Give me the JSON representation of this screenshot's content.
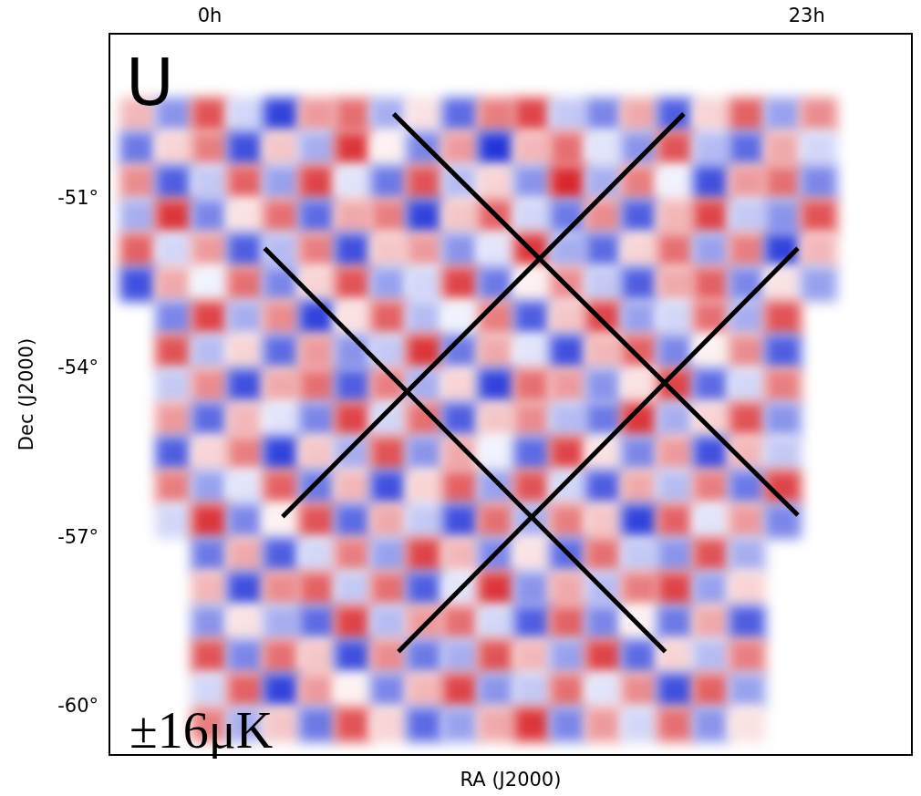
{
  "chart_data": {
    "type": "heatmap",
    "title": "U",
    "annotations": [
      "±16μK"
    ],
    "x_label": "RA (J2000)",
    "y_label": "Dec (J2000)",
    "xlim": [
      24.168,
      22.824
    ],
    "ylim": [
      -60.84,
      -48.06
    ],
    "xticks": [
      {
        "value": 24,
        "label": "0h"
      },
      {
        "value": 23,
        "label": "23h"
      }
    ],
    "yticks": [
      {
        "value": -51,
        "label": "-51°"
      },
      {
        "value": -54,
        "label": "-54°"
      },
      {
        "value": -57,
        "label": "-57°"
      },
      {
        "value": -60,
        "label": "-60°"
      }
    ],
    "grid": false,
    "clim": [
      -16,
      16
    ],
    "x": [
      24.12,
      24.06,
      24.0,
      23.94,
      23.88,
      23.82,
      23.76,
      23.7,
      23.64,
      23.58,
      23.52,
      23.46,
      23.4,
      23.34,
      23.28,
      23.22,
      23.16,
      23.1,
      23.04,
      22.98
    ],
    "y": [
      -49.5,
      -50.1,
      -50.7,
      -51.3,
      -51.9,
      -52.5,
      -53.1,
      -53.7,
      -54.3,
      -54.9,
      -55.5,
      -56.1,
      -56.7,
      -57.3,
      -57.9,
      -58.5,
      -59.1,
      -59.7,
      -60.3
    ],
    "cells": [
      [
        5,
        -8,
        12,
        -3,
        -14,
        7,
        10,
        -6,
        2,
        -11,
        9,
        13,
        -4,
        -9,
        6,
        -12,
        3,
        11,
        -7,
        8
      ],
      [
        -10,
        3,
        9,
        -13,
        4,
        -6,
        14,
        1,
        -9,
        7,
        -15,
        5,
        10,
        -2,
        -8,
        12,
        -5,
        -11,
        6,
        -3
      ],
      [
        8,
        -12,
        -4,
        11,
        -7,
        13,
        -2,
        -10,
        12,
        -5,
        3,
        -8,
        15,
        -6,
        9,
        -1,
        -13,
        7,
        10,
        -9
      ],
      [
        -6,
        14,
        -9,
        2,
        10,
        -11,
        6,
        9,
        -14,
        4,
        11,
        -3,
        -10,
        8,
        -12,
        5,
        13,
        -4,
        -8,
        12
      ],
      [
        11,
        -3,
        7,
        -12,
        -5,
        9,
        -13,
        4,
        7,
        -8,
        -2,
        14,
        -6,
        -11,
        3,
        10,
        -7,
        9,
        -14,
        5
      ],
      [
        -13,
        6,
        -1,
        10,
        -9,
        3,
        12,
        -7,
        -3,
        13,
        -10,
        1,
        8,
        -4,
        -12,
        6,
        11,
        -9,
        2,
        -7
      ],
      [
        null,
        -9,
        13,
        -6,
        8,
        -14,
        2,
        11,
        -5,
        -1,
        9,
        -12,
        4,
        13,
        -7,
        -3,
        10,
        -6,
        12,
        null
      ],
      [
        null,
        12,
        -5,
        3,
        -11,
        7,
        -8,
        -4,
        14,
        -10,
        6,
        -2,
        -13,
        5,
        11,
        -9,
        1,
        8,
        -12,
        null
      ],
      [
        null,
        -4,
        8,
        -13,
        6,
        10,
        -12,
        9,
        -6,
        3,
        -14,
        10,
        7,
        -8,
        2,
        13,
        -11,
        -3,
        9,
        null
      ],
      [
        null,
        7,
        -11,
        5,
        -2,
        -9,
        13,
        -3,
        10,
        -12,
        4,
        8,
        -5,
        -10,
        14,
        -6,
        3,
        12,
        -8,
        null
      ],
      [
        null,
        -12,
        3,
        9,
        -14,
        4,
        -6,
        12,
        -8,
        6,
        -1,
        -11,
        13,
        2,
        -9,
        7,
        -13,
        5,
        -4,
        null
      ],
      [
        null,
        9,
        -7,
        -2,
        11,
        -10,
        5,
        -13,
        3,
        11,
        -7,
        12,
        -3,
        -12,
        6,
        -5,
        9,
        -10,
        13,
        null
      ],
      [
        null,
        -3,
        14,
        -9,
        1,
        12,
        -11,
        6,
        -4,
        -13,
        10,
        -6,
        9,
        4,
        -14,
        11,
        -2,
        7,
        -9,
        null
      ],
      [
        null,
        null,
        -10,
        6,
        -12,
        -3,
        9,
        -7,
        13,
        5,
        -9,
        2,
        -11,
        10,
        -4,
        -8,
        12,
        -6,
        null,
        null
      ],
      [
        null,
        null,
        5,
        -13,
        8,
        11,
        -4,
        10,
        -12,
        -2,
        14,
        -8,
        6,
        -5,
        9,
        13,
        -7,
        3,
        null,
        null
      ],
      [
        null,
        null,
        -8,
        2,
        -6,
        -11,
        13,
        -5,
        7,
        10,
        -3,
        -12,
        11,
        -9,
        1,
        -10,
        6,
        -12,
        null,
        null
      ],
      [
        null,
        null,
        12,
        -9,
        10,
        4,
        -13,
        8,
        -10,
        -6,
        12,
        5,
        -7,
        13,
        -11,
        3,
        -5,
        9,
        null,
        null
      ],
      [
        null,
        null,
        -3,
        11,
        -14,
        7,
        1,
        -9,
        5,
        13,
        -8,
        -4,
        10,
        -2,
        8,
        -13,
        11,
        -7,
        null,
        null
      ],
      [
        null,
        null,
        9,
        -6,
        4,
        -10,
        12,
        3,
        -11,
        -7,
        6,
        14,
        -9,
        7,
        -3,
        10,
        -8,
        2,
        null,
        null
      ]
    ],
    "lines": [
      {
        "x": [
          23.692,
          23.015
        ],
        "y": [
          -49.48,
          -56.59
        ],
        "color": "#000000"
      },
      {
        "x": [
          23.206,
          23.878
        ],
        "y": [
          -49.48,
          -56.62
        ],
        "color": "#000000"
      },
      {
        "x": [
          23.908,
          23.237
        ],
        "y": [
          -51.86,
          -59.01
        ],
        "color": "#000000"
      },
      {
        "x": [
          23.015,
          23.684
        ],
        "y": [
          -51.86,
          -59.01
        ],
        "color": "#000000"
      }
    ]
  }
}
